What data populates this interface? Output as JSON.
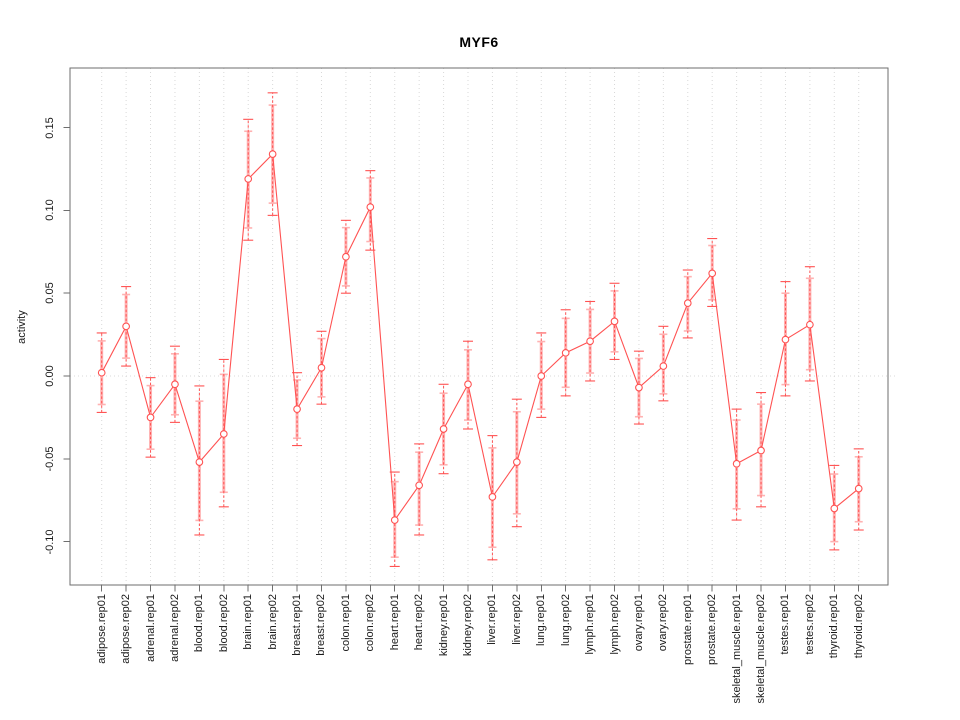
{
  "chart_data": {
    "type": "line",
    "title": "MYF6",
    "xlabel": "",
    "ylabel": "activity",
    "ylim": [
      -0.126,
      0.186
    ],
    "yticks": [
      0.15,
      0.1,
      0.05,
      0.0,
      -0.05,
      -0.1
    ],
    "ytick_labels": [
      "0.15",
      "0.10",
      "0.05",
      "0.00",
      "-0.05",
      "-0.10"
    ],
    "grid": "dotted vertical gridline at every category; dotted horizontal line at y=0",
    "legend_position": "none",
    "point_style": "open circles with error bars (dashed stems, capped whiskers)",
    "categories": [
      "adipose.rep01",
      "adipose.rep02",
      "adrenal.rep01",
      "adrenal.rep02",
      "blood.rep01",
      "blood.rep02",
      "brain.rep01",
      "brain.rep02",
      "breast.rep01",
      "breast.rep02",
      "colon.rep01",
      "colon.rep02",
      "heart.rep01",
      "heart.rep02",
      "kidney.rep01",
      "kidney.rep02",
      "liver.rep01",
      "liver.rep02",
      "lung.rep01",
      "lung.rep02",
      "lymph.rep01",
      "lymph.rep02",
      "ovary.rep01",
      "ovary.rep02",
      "prostate.rep01",
      "prostate.rep02",
      "skeletal_muscle.rep01",
      "skeletal_muscle.rep02",
      "testes.rep01",
      "testes.rep02",
      "thyroid.rep01",
      "thyroid.rep02"
    ],
    "series": [
      {
        "name": "activity",
        "values": [
          0.002,
          0.03,
          -0.025,
          -0.005,
          -0.052,
          -0.035,
          0.119,
          0.134,
          -0.02,
          0.005,
          0.072,
          0.102,
          -0.087,
          -0.066,
          -0.032,
          -0.005,
          -0.073,
          -0.052,
          0.0,
          0.014,
          0.021,
          0.033,
          -0.007,
          0.006,
          0.044,
          0.062,
          -0.053,
          -0.045,
          0.022,
          0.031,
          -0.08,
          -0.068
        ],
        "ci_low": [
          -0.022,
          0.006,
          -0.049,
          -0.028,
          -0.096,
          -0.079,
          0.082,
          0.097,
          -0.042,
          -0.017,
          0.05,
          0.076,
          -0.115,
          -0.096,
          -0.059,
          -0.032,
          -0.111,
          -0.091,
          -0.025,
          -0.012,
          -0.003,
          0.01,
          -0.029,
          -0.015,
          0.023,
          0.042,
          -0.087,
          -0.079,
          -0.012,
          -0.003,
          -0.105,
          -0.093
        ],
        "ci_high": [
          0.026,
          0.054,
          -0.001,
          0.018,
          -0.006,
          0.01,
          0.155,
          0.171,
          0.002,
          0.027,
          0.094,
          0.124,
          -0.058,
          -0.041,
          -0.005,
          0.021,
          -0.036,
          -0.014,
          0.026,
          0.04,
          0.045,
          0.056,
          0.015,
          0.03,
          0.064,
          0.083,
          -0.02,
          -0.01,
          0.057,
          0.066,
          -0.054,
          -0.044
        ]
      }
    ],
    "colors": {
      "series": "#ff5252",
      "error_bar_inner": "#ffb2b2",
      "gridline": "#d8d8d8",
      "axis_box": "#6e6e6e",
      "text": "#1a1a1a"
    }
  }
}
